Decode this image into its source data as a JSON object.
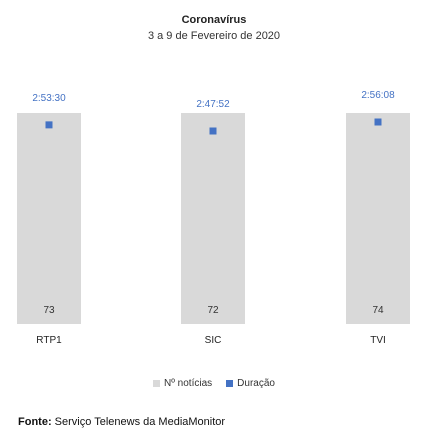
{
  "chart_data": {
    "type": "bar",
    "title": "Coronavírus",
    "subtitle": "3 a 9 de Fevereiro de 2020",
    "categories": [
      "RTP1",
      "SIC",
      "TVI"
    ],
    "series": [
      {
        "name": "Nº notícias",
        "values": [
          73,
          72,
          74
        ],
        "value_labels": [
          "73",
          "72",
          "74"
        ],
        "color": "#d9d9d9",
        "mark": "bar"
      },
      {
        "name": "Duração",
        "values": [
          "2:53:30",
          "2:47:52",
          "2:56:08"
        ],
        "value_labels": [
          "2:53:30",
          "2:47:52",
          "2:56:08"
        ],
        "color": "#4472c4",
        "mark": "point"
      }
    ],
    "legend_position": "bottom",
    "grid": false
  },
  "source": {
    "label": "Fonte:",
    "text": "Serviço Telenews da MediaMonitor"
  }
}
